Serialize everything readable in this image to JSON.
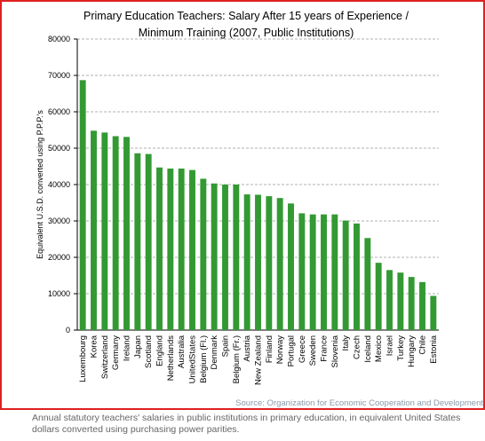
{
  "chart_data": {
    "type": "bar",
    "title": [
      "Primary Education Teachers: Salary After 15 years of Experience /",
      "Minimum Training (2007, Public Institutions)"
    ],
    "y_label": "Equivalent U.S.D. converted using P.P.P.'s",
    "source": "Source: Organization for Economic Cooperation and Development",
    "categories": [
      "Luxembourg",
      "Korea",
      "Switzerland",
      "Germany",
      "Ireland",
      "Japan",
      "Scotland",
      "England",
      "Netherlands",
      "Australia",
      "UnitedStates",
      "Belgium (Fl.)",
      "Denmark",
      "Spain",
      "Belgium (Fr.)",
      "Austria",
      "New Zealand",
      "Finland",
      "Norway",
      "Portugal",
      "Greece",
      "Sweden",
      "France",
      "Slovenia",
      "Italy",
      "Czech",
      "Iceland",
      "Mexico",
      "Israel",
      "Turkey",
      "Hungary",
      "Chile",
      "Estonia"
    ],
    "values": [
      68700,
      54800,
      54300,
      53300,
      53100,
      48600,
      48400,
      44700,
      44400,
      44400,
      44000,
      41600,
      40300,
      40000,
      40000,
      37300,
      37200,
      36800,
      36300,
      34800,
      32100,
      31800,
      31800,
      31800,
      30100,
      29300,
      25300,
      18500,
      16500,
      15800,
      14600,
      13200,
      9400
    ],
    "color": "#339933",
    "ylim": [
      0,
      80000
    ],
    "yticks": [
      0,
      10000,
      20000,
      30000,
      40000,
      50000,
      60000,
      70000,
      80000
    ],
    "grid": true
  },
  "caption": "Annual statutory teachers' salaries in public institutions in primary education, in equivalent United States dollars converted using purchasing power parities."
}
